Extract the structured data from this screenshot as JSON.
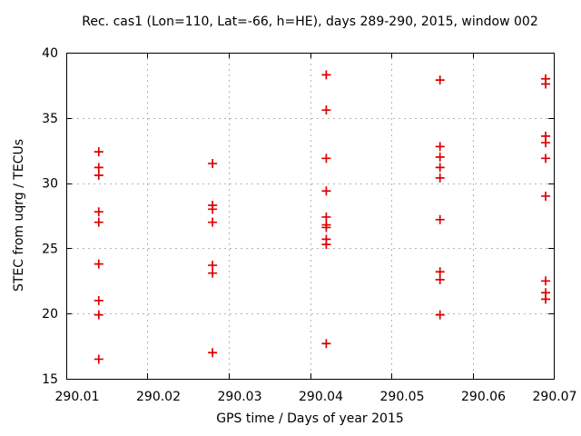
{
  "window": {
    "background": "#ffffff"
  },
  "chart_data": {
    "type": "scatter",
    "title": "Rec. cas1 (Lon=110, Lat=-66, h=HE), days 289-290, 2015, window 002",
    "xlabel": "GPS time / Days of year 2015",
    "ylabel": "STEC from uqrg / TECUs",
    "xlim": [
      290.01,
      290.07
    ],
    "ylim": [
      15,
      40
    ],
    "xticks": [
      290.01,
      290.02,
      290.03,
      290.04,
      290.05,
      290.06,
      290.07
    ],
    "xtick_labels": [
      "290.01",
      "290.02",
      "290.03",
      "290.04",
      "290.05",
      "290.06",
      "290.07"
    ],
    "yticks": [
      15,
      20,
      25,
      30,
      35,
      40
    ],
    "ytick_labels": [
      "15",
      "20",
      "25",
      "30",
      "35",
      "40"
    ],
    "grid": true,
    "legend": "none",
    "marker": {
      "shape": "plus",
      "color": "#dd0000",
      "size": 10,
      "stroke_width": 1.7
    },
    "colors": {
      "frame": "#000000",
      "grid": "#b4b4b4",
      "text": "#000000",
      "background": "#ffffff"
    },
    "series": [
      {
        "name": "STEC uqrg",
        "clusters": [
          {
            "x": 290.014,
            "y": [
              32.4,
              31.2,
              30.6,
              27.8,
              27.0,
              23.8,
              21.0,
              19.9,
              16.5
            ]
          },
          {
            "x": 290.028,
            "y": [
              31.5,
              28.3,
              28.0,
              27.0,
              23.7,
              23.1,
              17.0
            ]
          },
          {
            "x": 290.042,
            "y": [
              38.3,
              35.6,
              31.9,
              29.4,
              27.4,
              26.8,
              26.6,
              25.7,
              25.3,
              17.7
            ]
          },
          {
            "x": 290.056,
            "y": [
              37.9,
              32.8,
              32.0,
              31.2,
              30.4,
              27.2,
              23.2,
              22.6,
              19.9
            ]
          },
          {
            "x": 290.069,
            "y": [
              38.0,
              37.6,
              33.6,
              33.1,
              31.9,
              29.0,
              22.5,
              21.6,
              21.1
            ]
          }
        ]
      }
    ]
  }
}
